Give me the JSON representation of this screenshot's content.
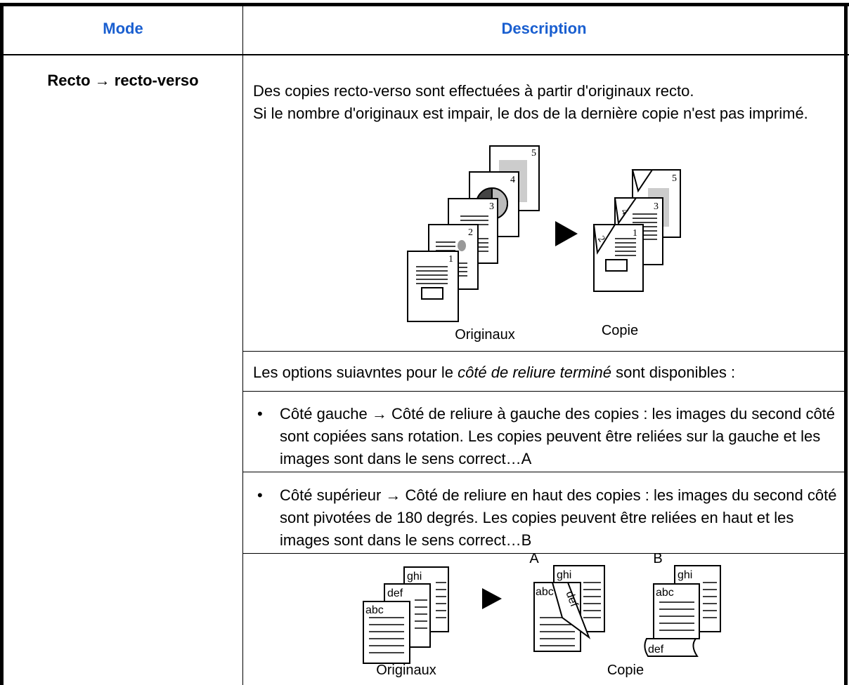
{
  "table": {
    "header": [
      "Mode",
      "Description"
    ],
    "rows": [
      {
        "mode": "Recto → recto-verso",
        "intro": [
          "Des copies recto-verso sont effectuées à partir d'originaux recto.",
          "Si le nombre d'originaux est impair, le dos de la dernière copie n'est pas imprimé."
        ],
        "figure1": {
          "page_numbers": [
            "1",
            "2",
            "3",
            "4",
            "5"
          ],
          "captions": [
            "Originaux",
            "Copie"
          ]
        },
        "options_intro": [
          "Les options suiavntes pour le ",
          "côté de reliure terminé",
          " sont disponibles :"
        ],
        "bullets": [
          "Côté gauche → Côté de reliure à gauche des copies : les images du second côté sont copiées sans rotation. Les copies peuvent être reliées sur la gauche et les images sont dans le sens correct…A",
          "Côté supérieur → Côté de reliure en haut des copies : les images du second côté sont pivotées de 180 degrés. Les copies peuvent être reliées en haut et les images sont dans le sens correct…B"
        ],
        "figure2": {
          "page_texts": [
            "abc",
            "def",
            "ghi"
          ],
          "variants": [
            "A",
            "B"
          ],
          "captions": [
            "Originaux",
            "Copie"
          ]
        }
      }
    ]
  }
}
